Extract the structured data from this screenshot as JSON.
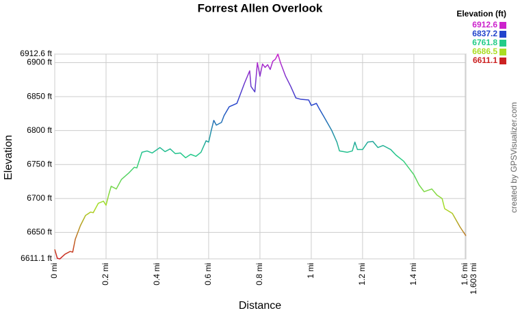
{
  "chart_data": {
    "type": "line",
    "title": "Forrest Allen Overlook",
    "x_label": "Distance",
    "y_label": "Elevation",
    "watermark": "created by GPSVisualizer.com",
    "legend": {
      "title": "Elevation (ft)",
      "position": "top-right",
      "items": [
        {
          "value": 6912.6,
          "color": "#cc22cc"
        },
        {
          "value": 6837.2,
          "color": "#2244cc"
        },
        {
          "value": 6761.8,
          "color": "#22cc88"
        },
        {
          "value": 6686.5,
          "color": "#aadd22"
        },
        {
          "value": 6611.1,
          "color": "#cc2222"
        }
      ]
    },
    "xlim": [
      0,
      1.603
    ],
    "ylim": [
      6611.1,
      6912.6
    ],
    "xticks": [
      {
        "value": 0,
        "label": "0 mi"
      },
      {
        "value": 0.2,
        "label": "0.2 mi"
      },
      {
        "value": 0.4,
        "label": "0.4 mi"
      },
      {
        "value": 0.6,
        "label": "0.6 mi"
      },
      {
        "value": 0.8,
        "label": "0.8 mi"
      },
      {
        "value": 1,
        "label": "1 mi"
      },
      {
        "value": 1.2,
        "label": "1.2 mi"
      },
      {
        "value": 1.4,
        "label": "1.4 mi"
      },
      {
        "value": 1.6,
        "label": "1.6 mi"
      },
      {
        "value": 1.603,
        "label": "1.603 mi"
      }
    ],
    "yticks": [
      {
        "value": 6611.1,
        "label": "6611.1 ft"
      },
      {
        "value": 6650,
        "label": "6650 ft"
      },
      {
        "value": 6700,
        "label": "6700 ft"
      },
      {
        "value": 6750,
        "label": "6750 ft"
      },
      {
        "value": 6800,
        "label": "6800 ft"
      },
      {
        "value": 6850,
        "label": "6850 ft"
      },
      {
        "value": 6900,
        "label": "6900 ft"
      },
      {
        "value": 6912.6,
        "label": "6912.6 ft"
      }
    ],
    "grid": true,
    "x": [
      0,
      0.01,
      0.02,
      0.04,
      0.06,
      0.07,
      0.08,
      0.1,
      0.12,
      0.14,
      0.15,
      0.17,
      0.19,
      0.2,
      0.21,
      0.22,
      0.24,
      0.26,
      0.29,
      0.31,
      0.32,
      0.34,
      0.36,
      0.38,
      0.41,
      0.43,
      0.45,
      0.47,
      0.49,
      0.51,
      0.53,
      0.55,
      0.57,
      0.59,
      0.6,
      0.61,
      0.62,
      0.63,
      0.65,
      0.66,
      0.68,
      0.71,
      0.72,
      0.74,
      0.76,
      0.765,
      0.78,
      0.79,
      0.8,
      0.81,
      0.82,
      0.83,
      0.84,
      0.85,
      0.86,
      0.87,
      0.88,
      0.9,
      0.92,
      0.94,
      0.96,
      0.99,
      1.0,
      1.02,
      1.03,
      1.05,
      1.08,
      1.1,
      1.11,
      1.14,
      1.16,
      1.17,
      1.18,
      1.2,
      1.22,
      1.24,
      1.26,
      1.28,
      1.31,
      1.33,
      1.36,
      1.38,
      1.4,
      1.42,
      1.44,
      1.47,
      1.49,
      1.51,
      1.52,
      1.55,
      1.58,
      1.603
    ],
    "series": [
      {
        "name": "Elevation",
        "values": [
          6625,
          6612,
          6611,
          6618,
          6622,
          6621,
          6640,
          6660,
          6675,
          6680,
          6679,
          6693,
          6696,
          6690,
          6705,
          6718,
          6714,
          6728,
          6738,
          6746,
          6745,
          6768,
          6770,
          6767,
          6775,
          6769,
          6773,
          6766,
          6767,
          6760,
          6765,
          6762,
          6768,
          6785,
          6783,
          6800,
          6815,
          6808,
          6812,
          6822,
          6835,
          6840,
          6850,
          6870,
          6888,
          6865,
          6857,
          6900,
          6880,
          6898,
          6893,
          6897,
          6890,
          6902,
          6905,
          6912.6,
          6900,
          6880,
          6865,
          6848,
          6846,
          6845,
          6837,
          6840,
          6833,
          6820,
          6800,
          6783,
          6770,
          6768,
          6770,
          6783,
          6772,
          6772,
          6783,
          6784,
          6775,
          6778,
          6772,
          6764,
          6755,
          6745,
          6735,
          6720,
          6710,
          6714,
          6705,
          6700,
          6685,
          6678,
          6658,
          6645
        ]
      }
    ]
  }
}
